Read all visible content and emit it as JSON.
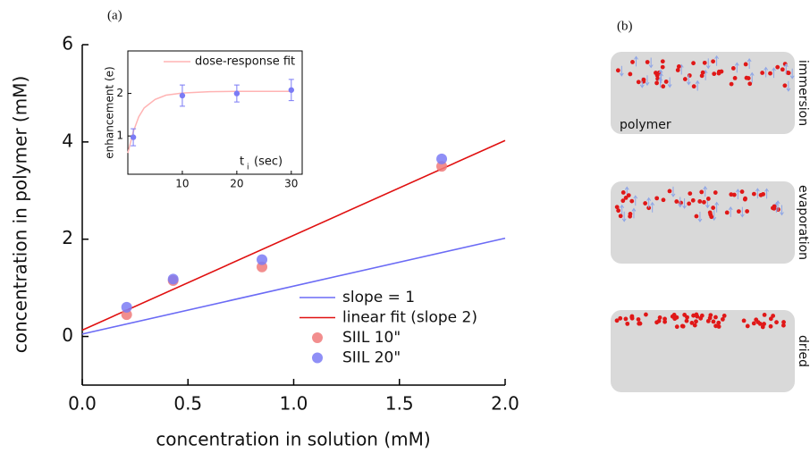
{
  "chart_data": [
    {
      "type": "scatter",
      "panel_label": "(a)",
      "x_label": "concentration in solution (mM)",
      "y_label": "concentration in polymer (mM)",
      "xlim": [
        0,
        2
      ],
      "ylim": [
        -1,
        6
      ],
      "xticks": [
        {
          "value": 0,
          "label": "0.0"
        },
        0.5,
        {
          "value": 1,
          "label": "1.0"
        },
        1.5,
        {
          "value": 2,
          "label": "2.0"
        }
      ],
      "yticks": [
        0,
        2,
        4,
        6
      ],
      "legend": "lower right",
      "series": [
        {
          "name": "slope = 1",
          "type": "line",
          "color": "#6b6bf5",
          "x": [
            0,
            2
          ],
          "values": [
            0.05,
            2.02
          ]
        },
        {
          "name": "linear fit (slope 2)",
          "type": "line",
          "color": "#e01010",
          "x": [
            0,
            2
          ],
          "values": [
            0.13,
            4.03
          ]
        },
        {
          "name": "SIIL 10\"",
          "type": "scatter",
          "color": "#f07a7a",
          "x": [
            0.21,
            0.43,
            0.85,
            1.7
          ],
          "values": [
            0.45,
            1.15,
            1.43,
            3.5
          ]
        },
        {
          "name": "SIIL 20\"",
          "type": "scatter",
          "color": "#7b7bf5",
          "x": [
            0.21,
            0.43,
            0.85,
            1.7
          ],
          "values": [
            0.6,
            1.18,
            1.58,
            3.65
          ]
        }
      ]
    },
    {
      "type": "scatter",
      "x_label": {
        "main": "t",
        "subscript": "i",
        "unit": "(sec)"
      },
      "y_label": "enhancement (e)",
      "xlim": [
        0,
        32
      ],
      "ylim": [
        0.1,
        3
      ],
      "xticks": [
        10,
        20,
        30
      ],
      "yticks": [
        1,
        2
      ],
      "legend": "upper right",
      "series": [
        {
          "name": "dose-response fit",
          "type": "line",
          "color": "#ffb3b3",
          "x": [
            0,
            1,
            2,
            3,
            5,
            7,
            10,
            15,
            20,
            30
          ],
          "values": [
            0.6,
            1.1,
            1.45,
            1.66,
            1.86,
            1.96,
            2.01,
            2.04,
            2.05,
            2.05
          ]
        },
        {
          "type": "scatter",
          "color": "#7b7bf5",
          "x": [
            1,
            10,
            20,
            30
          ],
          "values": [
            0.97,
            1.95,
            2.0,
            2.08
          ],
          "errors": [
            0.2,
            0.25,
            0.2,
            0.25
          ]
        }
      ]
    }
  ],
  "panel_b": {
    "label": "(b)",
    "box_text": "polymer",
    "stages": [
      "immersion",
      "evaporation",
      "dried"
    ]
  }
}
